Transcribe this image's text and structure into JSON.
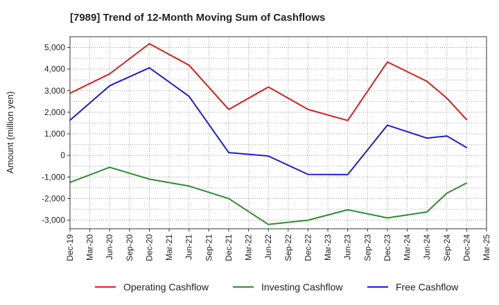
{
  "chart_data": {
    "type": "line",
    "title": "[7989]  Trend of 12-Month Moving Sum of Cashflows",
    "xlabel": "",
    "ylabel": "Amount (million yen)",
    "ylim": [
      -3400,
      5500
    ],
    "yticks": [
      -3000,
      -2000,
      -1000,
      0,
      1000,
      2000,
      3000,
      4000,
      5000
    ],
    "ytick_labels": [
      "-3,000",
      "-2,000",
      "-1,000",
      "0",
      "1,000",
      "2,000",
      "3,000",
      "4,000",
      "5,000"
    ],
    "xtick_labels": [
      "Dec-19",
      "Mar-20",
      "Jun-20",
      "Sep-20",
      "Dec-20",
      "Mar-21",
      "Jun-21",
      "Sep-21",
      "Dec-21",
      "Mar-22",
      "Jun-22",
      "Sep-22",
      "Dec-22",
      "Mar-23",
      "Jun-23",
      "Sep-23",
      "Dec-23",
      "Mar-24",
      "Jun-24",
      "Sep-24",
      "Dec-24",
      "Mar-25"
    ],
    "x": [
      "Dec-19",
      "Jun-20",
      "Dec-20",
      "Jun-21",
      "Dec-21",
      "Jun-22",
      "Dec-22",
      "Jun-23",
      "Dec-23",
      "Jun-24",
      "Sep-24",
      "Dec-24"
    ],
    "grid": true,
    "legend_position": "bottom",
    "series": [
      {
        "name": "Operating Cashflow",
        "color": "#e41a1c",
        "values": [
          2880,
          3780,
          5180,
          4180,
          2130,
          3170,
          2130,
          1620,
          4330,
          3430,
          2650,
          1650
        ]
      },
      {
        "name": "Investing Cashflow",
        "color": "#2e8b2e",
        "values": [
          -1250,
          -550,
          -1100,
          -1420,
          -2000,
          -3200,
          -3000,
          -2520,
          -2900,
          -2620,
          -1750,
          -1280
        ]
      },
      {
        "name": "Free Cashflow",
        "color": "#1a1adf",
        "values": [
          1630,
          3230,
          4060,
          2740,
          130,
          -30,
          -880,
          -890,
          1400,
          800,
          900,
          360
        ]
      }
    ]
  }
}
